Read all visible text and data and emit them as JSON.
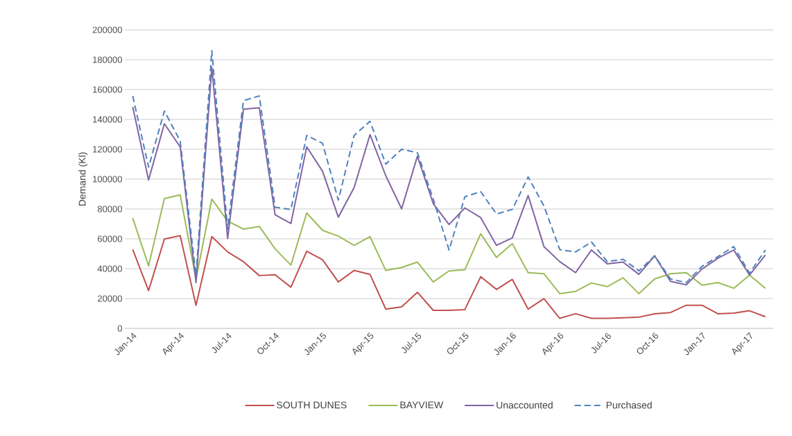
{
  "chart_data": {
    "type": "line",
    "ylabel": "Demand (Kl)",
    "categories": [
      "Jan-14",
      null,
      null,
      "Apr-14",
      null,
      null,
      "Jul-14",
      null,
      null,
      "Oct-14",
      null,
      null,
      "Jan-15",
      null,
      null,
      "Apr-15",
      null,
      null,
      "Jul-15",
      null,
      null,
      "Oct-15",
      null,
      null,
      "Jan-16",
      null,
      null,
      "Apr-16",
      null,
      null,
      "Jul-16",
      null,
      null,
      "Oct-16",
      null,
      null,
      "Jan-17",
      null,
      null,
      "Apr-17",
      null
    ],
    "series": [
      {
        "name": "SOUTH DUNES",
        "color": "#c0504d",
        "values": [
          52800,
          25300,
          59900,
          62100,
          15500,
          61500,
          51200,
          44700,
          35400,
          35900,
          27600,
          51700,
          46000,
          31100,
          38800,
          36200,
          12900,
          14400,
          24200,
          12100,
          12100,
          12600,
          34600,
          26100,
          32800,
          12900,
          19900,
          6700,
          9800,
          6700,
          6700,
          7100,
          7500,
          9800,
          10600,
          15500,
          15500,
          9800,
          10200,
          11800,
          7800
        ]
      },
      {
        "name": "BAYVIEW",
        "color": "#9bbb59",
        "values": [
          73900,
          41900,
          87000,
          89400,
          33000,
          86600,
          71900,
          66500,
          68300,
          53300,
          42400,
          77300,
          65700,
          61800,
          55600,
          61500,
          38800,
          40800,
          44400,
          31100,
          38500,
          39300,
          63400,
          47500,
          56800,
          37300,
          36600,
          23300,
          24800,
          30400,
          28000,
          33900,
          23300,
          33100,
          36600,
          37300,
          28900,
          30700,
          26900,
          35700,
          26900
        ]
      },
      {
        "name": "Unaccounted",
        "color": "#8064a2",
        "values": [
          148400,
          99400,
          137100,
          121600,
          30700,
          175000,
          60200,
          146900,
          147800,
          76100,
          70300,
          121600,
          105300,
          74500,
          94400,
          129800,
          102200,
          80100,
          115400,
          83500,
          69600,
          80700,
          74200,
          55600,
          60600,
          89000,
          54800,
          44700,
          37300,
          52500,
          43200,
          44400,
          36200,
          48600,
          31500,
          29200,
          39800,
          47000,
          52500,
          35700,
          49100
        ]
      },
      {
        "name": "Purchased",
        "color": "#4f81bd",
        "line_style": "dashed",
        "values": [
          155700,
          108000,
          145600,
          125500,
          35400,
          186000,
          66500,
          152600,
          155700,
          81200,
          79700,
          129300,
          124000,
          85900,
          129300,
          138700,
          110000,
          120000,
          117700,
          86600,
          52500,
          88200,
          91600,
          76600,
          79700,
          101400,
          82000,
          52800,
          51200,
          57900,
          44700,
          46300,
          38500,
          48600,
          33100,
          30700,
          41600,
          48100,
          54800,
          37000,
          52500
        ]
      }
    ],
    "ylim": [
      0,
      200000
    ],
    "yticks": [
      0,
      20000,
      40000,
      60000,
      80000,
      100000,
      120000,
      140000,
      160000,
      180000,
      200000
    ],
    "grid": "y",
    "legend": "bottom"
  }
}
